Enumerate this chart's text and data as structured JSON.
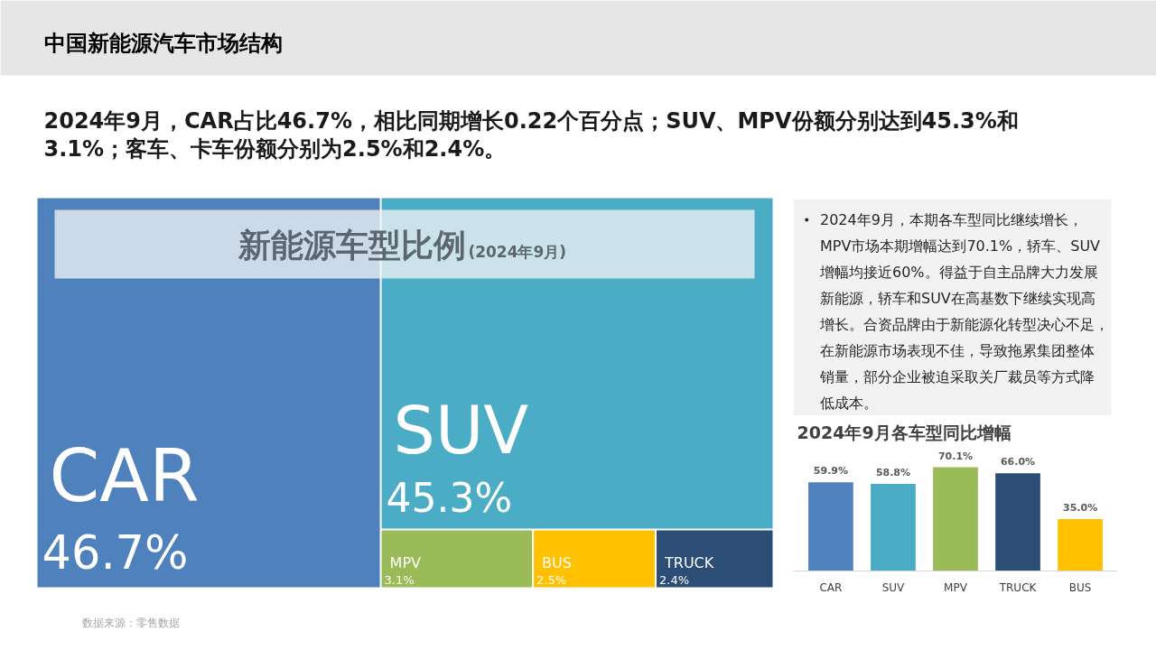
{
  "chart_data": [
    {
      "type": "other",
      "title": "中国新能源汽车市场结构",
      "subtitle": "2024年9月，CAR占比46.7%，相比同期增长0.22个百分点；SUV、MPV份额分别达到45.3%和3.1%；客车、卡车份额分别为2.5%和2.4%。"
    },
    {
      "type": "other",
      "title": "新能源车型比例",
      "subtitle": "(2024年9月)",
      "categories": [
        "CAR",
        "SUV",
        "MPV",
        "BUS",
        "TRUCK"
      ],
      "values": [
        46.7,
        45.3,
        3.1,
        2.5,
        2.4
      ],
      "value_labels": [
        "46.7%",
        "45.3%",
        "3.1%",
        "2.5%",
        "2.4%"
      ],
      "colors": [
        "#4f81bd",
        "#4bacc6",
        "#9bbb59",
        "#ffc000",
        "#2c4d75"
      ],
      "annotations": [
        "数据来源：零售数据"
      ]
    },
    {
      "type": "other",
      "annotations": [
        "2024年9月，本期各车型同比继续增长，MPV市场本期增幅达到70.1%，轿车、SUV增幅均接近60%。得益于自主品牌大力发展新能源，轿车和SUV在高基数下继续实现高增长。合资品牌由于新能源化转型决心不足，在新能源市场表现不佳，导致拖累集团整体销量，部分企业被迫采取关厂裁员等方式降低成本。"
      ]
    },
    {
      "type": "bar",
      "title": "2024年9月各车型同比增幅",
      "categories": [
        "CAR",
        "SUV",
        "MPV",
        "TRUCK",
        "BUS"
      ],
      "values": [
        59.9,
        58.8,
        70.1,
        66.0,
        35.0
      ],
      "value_labels": [
        "59.9%",
        "58.8%",
        "70.1%",
        "66.0%",
        "35.0%"
      ],
      "colors": [
        "#4f81bd",
        "#4bacc6",
        "#9bbb59",
        "#2c4d75",
        "#ffc000"
      ]
    }
  ]
}
